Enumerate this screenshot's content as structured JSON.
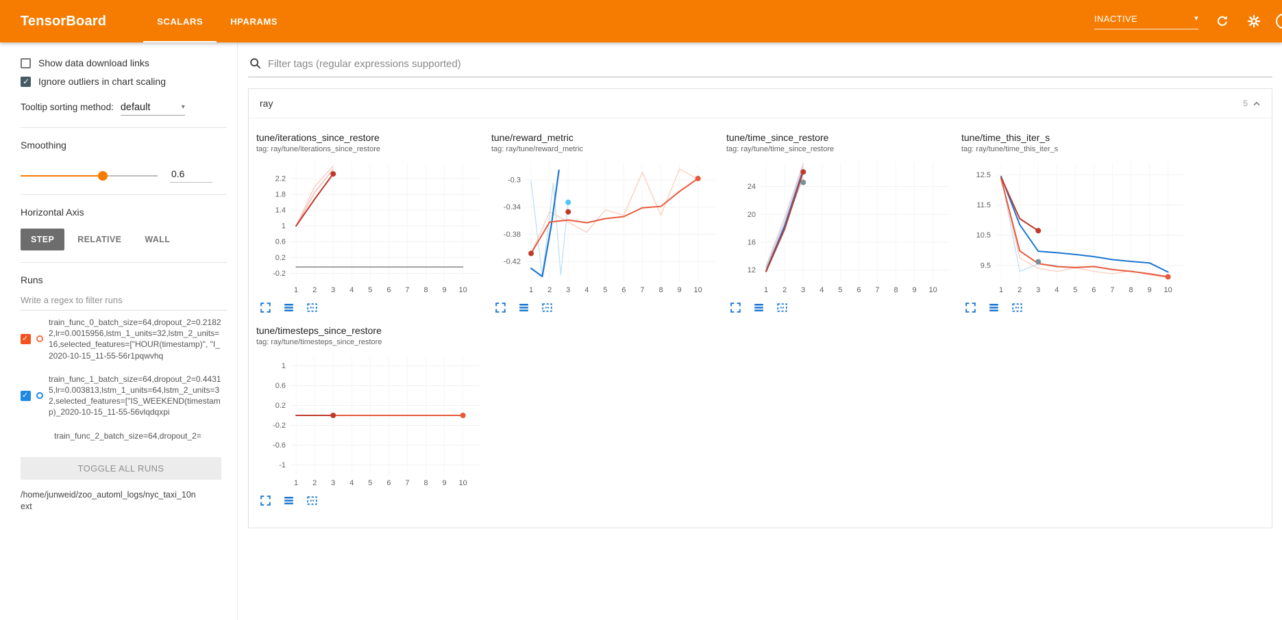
{
  "header": {
    "title": "TensorBoard",
    "tabs": [
      {
        "label": "SCALARS",
        "active": true
      },
      {
        "label": "HPARAMS",
        "active": false
      }
    ],
    "status": "INACTIVE"
  },
  "icons": {
    "header": [
      "chevron-down-icon",
      "refresh-icon",
      "settings-gear-icon",
      "help-icon"
    ],
    "search": "search-icon",
    "category_collapse": "chevron-up-icon",
    "chart_footer": [
      {
        "name": "expand-chart-icon"
      },
      {
        "name": "log-scale-icon"
      },
      {
        "name": "fit-domain-icon"
      }
    ]
  },
  "colors": {
    "accent": "#f57c00",
    "chart_icon": "#1976d2",
    "run_orange": "#e8593c",
    "run_blue": "#1976d2",
    "run_red": "#c0392b"
  },
  "sidebar": {
    "checkboxes": [
      {
        "label": "Show data download links",
        "checked": false
      },
      {
        "label": "Ignore outliers in chart scaling",
        "checked": true
      }
    ],
    "tooltip_sorting": {
      "label": "Tooltip sorting method:",
      "value": "default"
    },
    "smoothing": {
      "label": "Smoothing",
      "value": "0.6"
    },
    "horizontal_axis": {
      "label": "Horizontal Axis",
      "options": [
        "STEP",
        "RELATIVE",
        "WALL"
      ],
      "selected": "STEP"
    },
    "runs": {
      "label": "Runs",
      "filter_placeholder": "Write a regex to filter runs",
      "items": [
        {
          "label": "train_func_0_batch_size=64,dropout_2=0.21822,lr=0.0015956,lstm_1_units=32,lstm_2_units=16,selected_features=[\"HOUR(timestamp)\", \"I_2020-10-15_11-55-56r1pqwvhq",
          "checked": true,
          "checkbox_color": "#f4511e",
          "ring_color": "#ff7043"
        },
        {
          "label": "train_func_1_batch_size=64,dropout_2=0.44315,lr=0.003813,lstm_1_units=64,lstm_2_units=32,selected_features=[\"IS_WEEKEND(timestamp)_2020-10-15_11-55-56vlqdqxpi",
          "checked": true,
          "checkbox_color": "#1e88e5",
          "ring_color": "#1e88e5"
        },
        {
          "label": "train_func_2_batch_size=64,dropout_2="
        }
      ],
      "toggle_all_label": "TOGGLE ALL RUNS",
      "log_path": "/home/junweid/zoo_automl_logs/nyc_taxi_10next"
    }
  },
  "main": {
    "filter_placeholder": "Filter tags (regular expressions supported)",
    "category": {
      "title": "ray",
      "count": "5"
    }
  },
  "chart_data": [
    {
      "type": "line",
      "title": "tune/iterations_since_restore",
      "tag": "tag: ray/tune/iterations_since_restore",
      "xlim": [
        0.7,
        10.9
      ],
      "ylim": [
        -0.42,
        2.6
      ],
      "xticks": [
        1,
        2,
        3,
        4,
        5,
        6,
        7,
        8,
        9,
        10
      ],
      "yticks": [
        -0.2,
        0.2,
        0.6,
        1,
        1.4,
        1.8,
        2.2
      ],
      "series": [
        {
          "name": "raw-a",
          "color": "#f6c9bd",
          "width": 1.3,
          "points": [
            [
              1,
              1.0
            ],
            [
              2,
              2.0
            ],
            [
              3,
              2.52
            ]
          ]
        },
        {
          "name": "raw-b",
          "color": "#f2b6aa",
          "width": 1.3,
          "points": [
            [
              1,
              1.0
            ],
            [
              2,
              1.85
            ],
            [
              3,
              2.44
            ]
          ]
        },
        {
          "name": "const-zero",
          "color": "#6e6e6e",
          "width": 1.3,
          "points": [
            [
              1,
              -0.04
            ],
            [
              10,
              -0.04
            ]
          ]
        },
        {
          "name": "run-red",
          "color": "#c0392b",
          "width": 2,
          "points": [
            [
              1,
              1.0
            ],
            [
              2,
              1.68
            ],
            [
              3,
              2.32
            ]
          ]
        }
      ],
      "markers": [
        {
          "x": 3,
          "y": 2.32,
          "color": "#c0392b"
        }
      ]
    },
    {
      "type": "line",
      "title": "tune/reward_metric",
      "tag": "tag: ray/tune/reward_metric",
      "xlim": [
        0.7,
        10.9
      ],
      "ylim": [
        -0.45,
        -0.275
      ],
      "xticks": [
        1,
        2,
        3,
        4,
        5,
        6,
        7,
        8,
        9,
        10
      ],
      "yticks": [
        -0.42,
        -0.38,
        -0.34,
        -0.3
      ],
      "series": [
        {
          "name": "blue-raw",
          "color": "#bfe0f5",
          "width": 1.3,
          "points": [
            [
              1,
              -0.302
            ],
            [
              1.6,
              -0.443
            ],
            [
              2.2,
              -0.305
            ],
            [
              2.6,
              -0.44
            ],
            [
              3,
              -0.333
            ]
          ]
        },
        {
          "name": "orange-raw",
          "color": "#f9cdbd",
          "width": 1.3,
          "points": [
            [
              1,
              -0.408
            ],
            [
              2,
              -0.347
            ],
            [
              3,
              -0.362
            ],
            [
              4,
              -0.377
            ],
            [
              5,
              -0.344
            ],
            [
              6,
              -0.352
            ],
            [
              7,
              -0.289
            ],
            [
              8,
              -0.352
            ],
            [
              9,
              -0.284
            ],
            [
              10,
              -0.299
            ]
          ]
        },
        {
          "name": "run-blue",
          "color": "#1976d2",
          "width": 2.2,
          "points": [
            [
              1,
              -0.43
            ],
            [
              1.6,
              -0.442
            ],
            [
              2.1,
              -0.365
            ],
            [
              2.5,
              -0.286
            ]
          ]
        },
        {
          "name": "run-orange",
          "color": "#e8593c",
          "width": 2,
          "points": [
            [
              1,
              -0.408
            ],
            [
              2,
              -0.362
            ],
            [
              3,
              -0.359
            ],
            [
              4,
              -0.363
            ],
            [
              5,
              -0.357
            ],
            [
              6,
              -0.354
            ],
            [
              7,
              -0.341
            ],
            [
              8,
              -0.339
            ],
            [
              9,
              -0.317
            ],
            [
              10,
              -0.298
            ]
          ]
        }
      ],
      "markers": [
        {
          "x": 1,
          "y": -0.408,
          "color": "#c0392b"
        },
        {
          "x": 3,
          "y": -0.333,
          "color": "#4fc3f7"
        },
        {
          "x": 3,
          "y": -0.347,
          "color": "#c0392b"
        },
        {
          "x": 10,
          "y": -0.298,
          "color": "#e8593c"
        }
      ]
    },
    {
      "type": "line",
      "title": "tune/time_since_restore",
      "tag": "tag: ray/tune/time_since_restore",
      "xlim": [
        0.7,
        10.9
      ],
      "ylim": [
        10.3,
        27.4
      ],
      "xticks": [
        1,
        2,
        3,
        4,
        5,
        6,
        7,
        8,
        9,
        10
      ],
      "yticks": [
        12,
        16,
        20,
        24
      ],
      "series": [
        {
          "name": "raw-a",
          "color": "#d8cfe8",
          "width": 1.3,
          "points": [
            [
              1,
              12.6
            ],
            [
              2,
              19.6
            ],
            [
              3,
              27.3
            ]
          ]
        },
        {
          "name": "raw-b",
          "color": "#f6c3b8",
          "width": 1.3,
          "points": [
            [
              1,
              12.4
            ],
            [
              2,
              19.0
            ],
            [
              3,
              26.9
            ]
          ]
        },
        {
          "name": "raw-c",
          "color": "#cfcfcf",
          "width": 1.3,
          "points": [
            [
              1,
              12.3
            ],
            [
              2,
              18.2
            ],
            [
              3,
              25.3
            ]
          ]
        },
        {
          "name": "run-blue",
          "color": "#1976d2",
          "width": 2,
          "points": [
            [
              1,
              11.9
            ],
            [
              2,
              18.4
            ],
            [
              3,
              26.4
            ]
          ]
        },
        {
          "name": "run-red",
          "color": "#c0392b",
          "width": 2,
          "points": [
            [
              1,
              11.8
            ],
            [
              2,
              17.9
            ],
            [
              3,
              26.1
            ]
          ]
        }
      ],
      "markers": [
        {
          "x": 3,
          "y": 26.1,
          "color": "#c0392b"
        },
        {
          "x": 3,
          "y": 24.6,
          "color": "#78909c"
        }
      ]
    },
    {
      "type": "line",
      "title": "tune/time_this_iter_s",
      "tag": "tag: ray/tune/time_this_iter_s",
      "xlim": [
        0.7,
        10.9
      ],
      "ylim": [
        8.95,
        12.9
      ],
      "xticks": [
        1,
        2,
        3,
        4,
        5,
        6,
        7,
        8,
        9,
        10
      ],
      "yticks": [
        9.5,
        10.5,
        11.5,
        12.5
      ],
      "series": [
        {
          "name": "blue-raw",
          "color": "#bfe0f5",
          "width": 1.3,
          "points": [
            [
              1,
              12.45
            ],
            [
              2,
              9.3
            ],
            [
              3,
              9.55
            ],
            [
              4,
              9.5
            ]
          ]
        },
        {
          "name": "orange-raw",
          "color": "#f9cdbd",
          "width": 1.3,
          "points": [
            [
              1,
              12.4
            ],
            [
              2,
              9.75
            ],
            [
              3,
              9.4
            ],
            [
              4,
              9.3
            ],
            [
              5,
              9.42
            ],
            [
              6,
              9.3
            ],
            [
              7,
              9.22
            ],
            [
              8,
              9.32
            ],
            [
              9,
              9.18
            ],
            [
              10,
              9.1
            ]
          ]
        },
        {
          "name": "run-blue",
          "color": "#1976d2",
          "width": 2,
          "points": [
            [
              1,
              12.45
            ],
            [
              2,
              10.85
            ],
            [
              3,
              9.97
            ],
            [
              4,
              9.92
            ],
            [
              5,
              9.86
            ],
            [
              6,
              9.79
            ],
            [
              7,
              9.69
            ],
            [
              8,
              9.63
            ],
            [
              9,
              9.58
            ],
            [
              10,
              9.28
            ]
          ]
        },
        {
          "name": "run-orange",
          "color": "#e8593c",
          "width": 2,
          "points": [
            [
              1,
              12.38
            ],
            [
              2,
              9.98
            ],
            [
              3,
              9.56
            ],
            [
              4,
              9.46
            ],
            [
              5,
              9.43
            ],
            [
              6,
              9.46
            ],
            [
              7,
              9.36
            ],
            [
              8,
              9.3
            ],
            [
              9,
              9.22
            ],
            [
              10,
              9.12
            ]
          ]
        },
        {
          "name": "run-red",
          "color": "#c0392b",
          "width": 2,
          "points": [
            [
              1,
              12.42
            ],
            [
              2,
              11.05
            ],
            [
              3,
              10.65
            ]
          ]
        }
      ],
      "markers": [
        {
          "x": 3,
          "y": 10.65,
          "color": "#c0392b"
        },
        {
          "x": 3,
          "y": 9.62,
          "color": "#78909c"
        },
        {
          "x": 10,
          "y": 9.12,
          "color": "#e8593c"
        }
      ]
    },
    {
      "type": "line",
      "title": "tune/timesteps_since_restore",
      "tag": "tag: ray/tune/timesteps_since_restore",
      "xlim": [
        0.7,
        10.9
      ],
      "ylim": [
        -1.2,
        1.2
      ],
      "xticks": [
        1,
        2,
        3,
        4,
        5,
        6,
        7,
        8,
        9,
        10
      ],
      "yticks": [
        -1,
        -0.6,
        -0.2,
        0.2,
        0.6,
        1
      ],
      "series": [
        {
          "name": "gray-const",
          "color": "#9e9e9e",
          "width": 1.4,
          "points": [
            [
              1,
              0
            ],
            [
              10,
              0
            ]
          ]
        },
        {
          "name": "run-orange",
          "color": "#e8593c",
          "width": 2,
          "points": [
            [
              1,
              0
            ],
            [
              10,
              0
            ]
          ]
        },
        {
          "name": "run-red",
          "color": "#c0392b",
          "width": 2,
          "points": [
            [
              1,
              0
            ],
            [
              3,
              0
            ]
          ]
        }
      ],
      "markers": [
        {
          "x": 3,
          "y": 0,
          "color": "#c0392b"
        },
        {
          "x": 10,
          "y": 0,
          "color": "#e8593c"
        }
      ]
    }
  ]
}
